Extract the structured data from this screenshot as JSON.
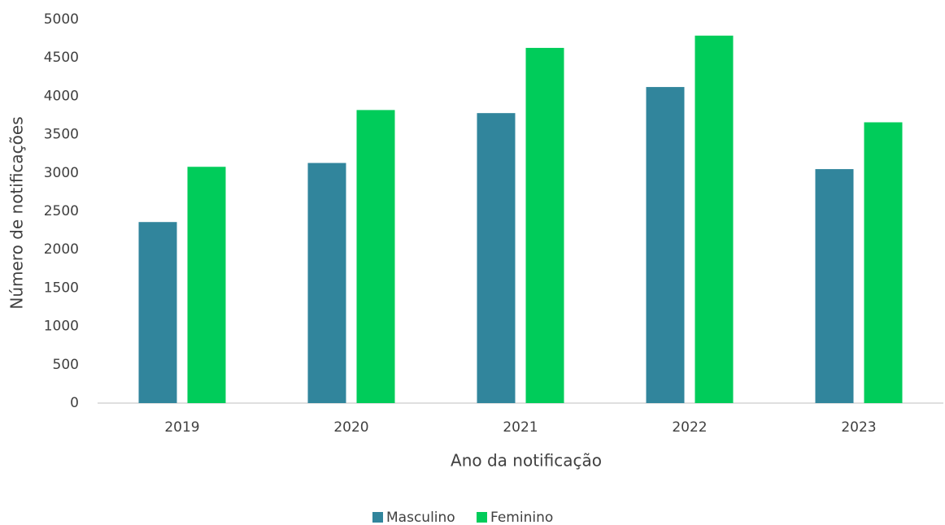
{
  "chart_data": {
    "type": "bar",
    "x_label": "Ano da notificação",
    "y_label": "Número de notificações",
    "categories": [
      "2019",
      "2020",
      "2021",
      "2022",
      "2023"
    ],
    "series": [
      {
        "name": "Masculino",
        "color": "#31859c",
        "values": [
          2360,
          3130,
          3780,
          4120,
          3050
        ]
      },
      {
        "name": "Feminino",
        "color": "#00cc5a",
        "values": [
          3080,
          3820,
          4630,
          4790,
          3660
        ]
      }
    ],
    "ylim": [
      0,
      5000
    ],
    "yticks": [
      0,
      500,
      1000,
      1500,
      2000,
      2500,
      3000,
      3500,
      4000,
      4500,
      5000
    ],
    "grid": false,
    "legend": "bottom"
  }
}
